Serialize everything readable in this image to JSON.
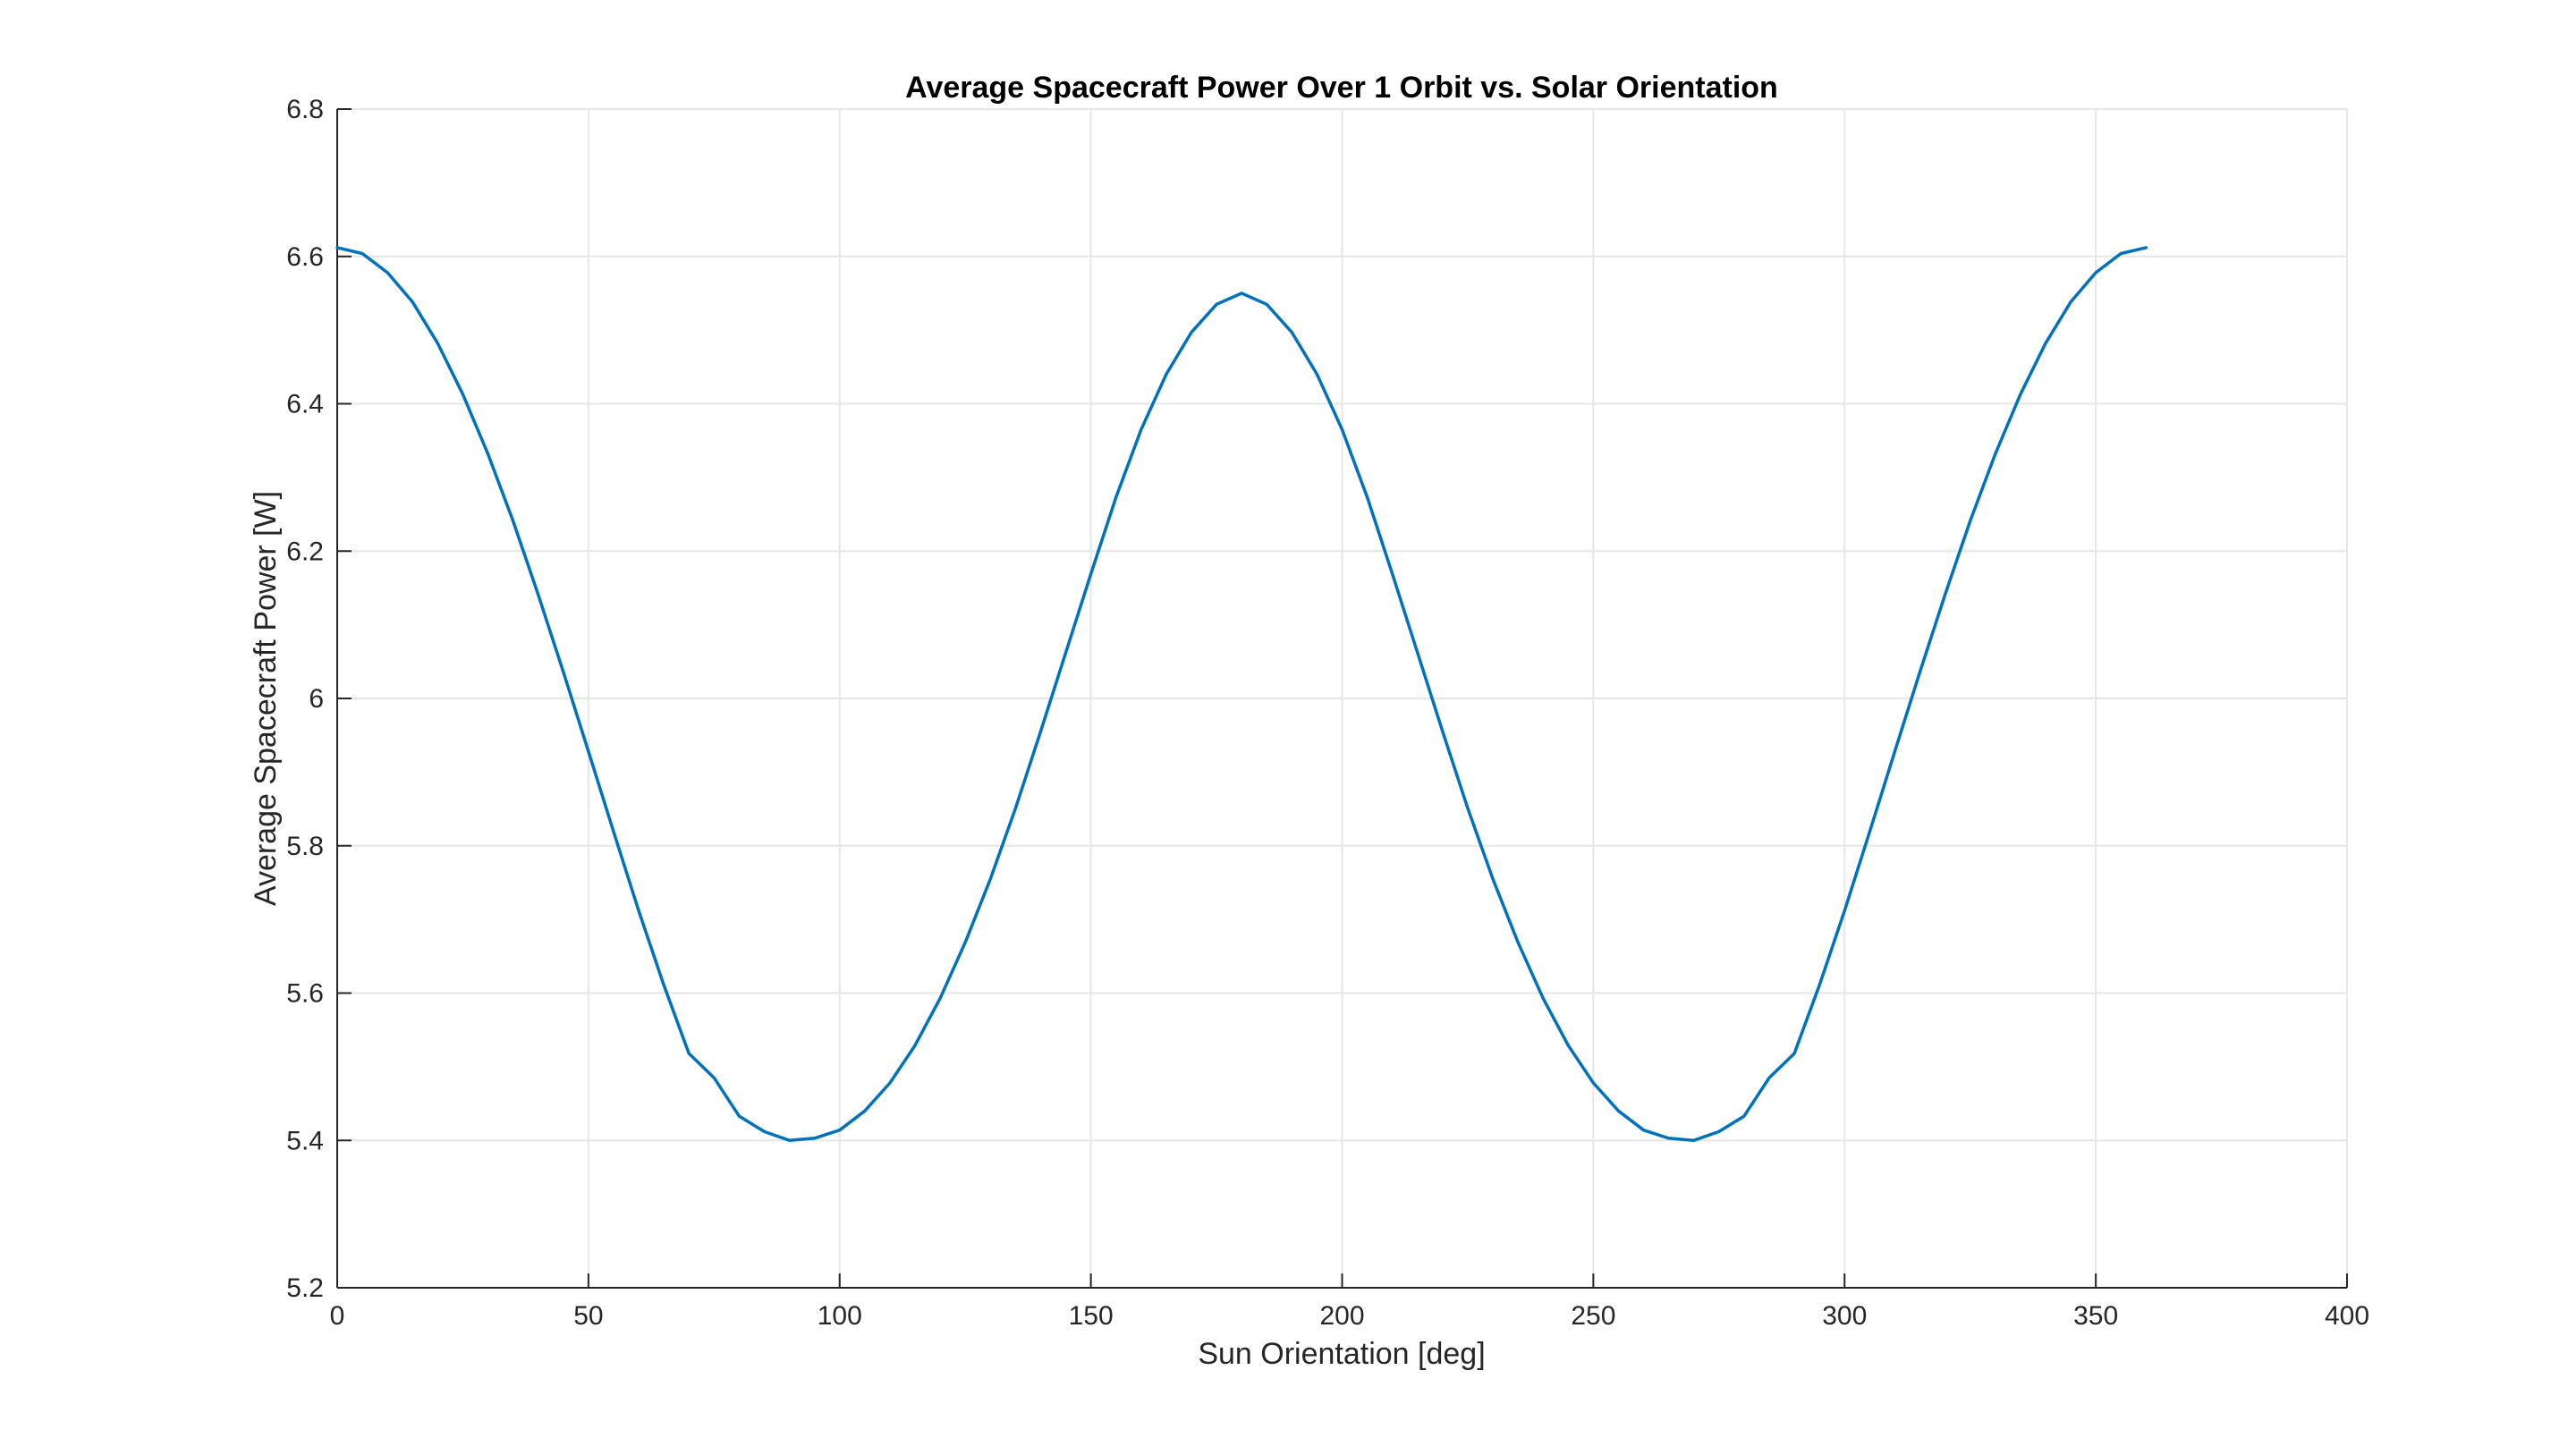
{
  "chart_data": {
    "type": "line",
    "title": "Average Spacecraft Power Over 1 Orbit vs. Solar Orientation",
    "xlabel": "Sun Orientation [deg]",
    "ylabel": "Average Spacecraft Power [W]",
    "xlim": [
      0,
      400
    ],
    "ylim": [
      5.2,
      6.8
    ],
    "xticks": [
      0,
      50,
      100,
      150,
      200,
      250,
      300,
      350,
      400
    ],
    "xtick_labels": [
      "0",
      "50",
      "100",
      "150",
      "200",
      "250",
      "300",
      "350",
      "400"
    ],
    "yticks": [
      5.2,
      5.4,
      5.6,
      5.8,
      6.0,
      6.2,
      6.4,
      6.6,
      6.8
    ],
    "ytick_labels": [
      "5.2",
      "5.4",
      "5.6",
      "5.8",
      "6",
      "6.2",
      "6.4",
      "6.6",
      "6.8"
    ],
    "grid": true,
    "legend": "none",
    "series": [
      {
        "color": "#0072BD",
        "x": [
          0,
          5,
          10,
          15,
          20,
          25,
          30,
          35,
          40,
          45,
          50,
          55,
          60,
          65,
          70,
          75,
          80,
          85,
          90,
          95,
          100,
          105,
          110,
          115,
          120,
          125,
          130,
          135,
          140,
          145,
          150,
          155,
          160,
          165,
          170,
          175,
          180,
          185,
          190,
          195,
          200,
          205,
          210,
          215,
          220,
          225,
          230,
          235,
          240,
          245,
          250,
          255,
          260,
          265,
          270,
          275,
          280,
          285,
          290,
          295,
          300,
          305,
          310,
          315,
          320,
          325,
          330,
          335,
          340,
          345,
          350,
          355,
          360
        ],
        "y": [
          6.612,
          6.604,
          6.578,
          6.538,
          6.482,
          6.413,
          6.332,
          6.241,
          6.141,
          6.036,
          5.928,
          5.819,
          5.712,
          5.611,
          5.518,
          5.485,
          5.433,
          5.412,
          5.4,
          5.403,
          5.414,
          5.44,
          5.478,
          5.529,
          5.593,
          5.669,
          5.755,
          5.851,
          5.955,
          6.062,
          6.169,
          6.273,
          6.365,
          6.44,
          6.497,
          6.535,
          6.55,
          6.535,
          6.497,
          6.44,
          6.365,
          6.273,
          6.169,
          6.062,
          5.955,
          5.851,
          5.755,
          5.669,
          5.593,
          5.529,
          5.478,
          5.44,
          5.414,
          5.403,
          5.4,
          5.412,
          5.433,
          5.485,
          5.518,
          5.611,
          5.712,
          5.819,
          5.928,
          6.036,
          6.141,
          6.241,
          6.332,
          6.413,
          6.482,
          6.538,
          6.578,
          6.604,
          6.612
        ]
      }
    ]
  }
}
